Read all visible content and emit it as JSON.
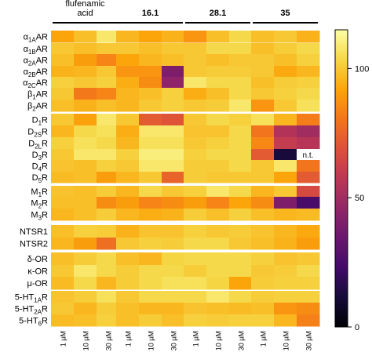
{
  "chart_data": {
    "type": "heatmap",
    "title": "",
    "xlabel": "",
    "ylabel": "",
    "groups": [
      {
        "label": "flufenamic acid",
        "label_lines": [
          "flufenamic",
          "acid"
        ],
        "bold": false
      },
      {
        "label": "16.1",
        "label_lines": [
          "16.1"
        ],
        "bold": true
      },
      {
        "label": "28.1",
        "label_lines": [
          "28.1"
        ],
        "bold": true
      },
      {
        "label": "35",
        "label_lines": [
          "35"
        ],
        "bold": true
      }
    ],
    "concentrations": [
      "1 µM",
      "10 µM",
      "30 µM"
    ],
    "rows": [
      {
        "main": "α",
        "sub": "1A",
        "rest": "AR"
      },
      {
        "main": "α",
        "sub": "1B",
        "rest": "AR"
      },
      {
        "main": "α",
        "sub": "2A",
        "rest": "AR"
      },
      {
        "main": "α",
        "sub": "2B",
        "rest": "AR"
      },
      {
        "main": "α",
        "sub": "2C",
        "rest": "AR"
      },
      {
        "main": "β",
        "sub": "1",
        "rest": "AR"
      },
      {
        "main": "β",
        "sub": "2",
        "rest": "AR"
      },
      {
        "main": "D",
        "sub": "1",
        "rest": "R"
      },
      {
        "main": "D",
        "sub": "2S",
        "rest": "R"
      },
      {
        "main": "D",
        "sub": "2L",
        "rest": "R"
      },
      {
        "main": "D",
        "sub": "3",
        "rest": "R"
      },
      {
        "main": "D",
        "sub": "4",
        "rest": "R"
      },
      {
        "main": "D",
        "sub": "5",
        "rest": "R"
      },
      {
        "main": "M",
        "sub": "1",
        "rest": "R"
      },
      {
        "main": "M",
        "sub": "2",
        "rest": "R"
      },
      {
        "main": "M",
        "sub": "3",
        "rest": "R"
      },
      {
        "main": "NTSR1",
        "sub": "",
        "rest": ""
      },
      {
        "main": "NTSR2",
        "sub": "",
        "rest": ""
      },
      {
        "main": "δ-OR",
        "sub": "",
        "rest": ""
      },
      {
        "main": "κ-OR",
        "sub": "",
        "rest": ""
      },
      {
        "main": "μ-OR",
        "sub": "",
        "rest": ""
      },
      {
        "main": "5-HT",
        "sub": "1A",
        "rest": "R"
      },
      {
        "main": "5-HT",
        "sub": "2A",
        "rest": "R"
      },
      {
        "main": "5-HT",
        "sub": "6",
        "rest": "R"
      }
    ],
    "row_groups": [
      [
        0,
        6
      ],
      [
        7,
        12
      ],
      [
        13,
        15
      ],
      [
        16,
        17
      ],
      [
        18,
        20
      ],
      [
        21,
        23
      ]
    ],
    "values": [
      [
        92,
        98,
        108,
        96,
        92,
        95,
        88,
        98,
        104,
        98,
        100,
        95
      ],
      [
        100,
        98,
        100,
        100,
        98,
        100,
        100,
        104,
        104,
        98,
        101,
        104
      ],
      [
        98,
        90,
        84,
        92,
        96,
        98,
        100,
        98,
        100,
        100,
        98,
        102
      ],
      [
        95,
        96,
        100,
        88,
        88,
        40,
        100,
        101,
        101,
        100,
        93,
        96
      ],
      [
        102,
        100,
        102,
        94,
        86,
        45,
        108,
        104,
        104,
        98,
        101,
        102
      ],
      [
        100,
        81,
        84,
        96,
        98,
        102,
        94,
        98,
        104,
        100,
        102,
        104
      ],
      [
        98,
        95,
        98,
        96,
        100,
        102,
        100,
        101,
        108,
        88,
        100,
        106
      ],
      [
        100,
        91,
        108,
        100,
        72,
        70,
        100,
        104,
        102,
        106,
        96,
        82
      ],
      [
        96,
        104,
        106,
        94,
        108,
        108,
        99,
        99,
        104,
        80,
        55,
        50
      ],
      [
        102,
        106,
        104,
        96,
        106,
        106,
        100,
        102,
        104,
        85,
        60,
        56
      ],
      [
        100,
        108,
        108,
        102,
        110,
        110,
        102,
        104,
        104,
        72,
        12,
        null
      ],
      [
        99,
        98,
        102,
        100,
        108,
        108,
        101,
        101,
        104,
        100,
        108,
        80
      ],
      [
        97,
        98,
        90,
        96,
        100,
        75,
        101,
        100,
        100,
        100,
        92,
        72
      ],
      [
        99,
        98,
        101,
        96,
        104,
        100,
        102,
        108,
        104,
        96,
        100,
        66
      ],
      [
        98,
        98,
        86,
        90,
        84,
        86,
        90,
        84,
        92,
        86,
        40,
        25
      ],
      [
        96,
        98,
        101,
        96,
        94,
        95,
        101,
        98,
        102,
        98,
        96,
        97
      ],
      [
        98,
        102,
        101,
        95,
        99,
        99,
        102,
        100,
        101,
        99,
        96,
        93
      ],
      [
        96,
        90,
        78,
        100,
        102,
        101,
        104,
        104,
        100,
        98,
        95,
        90
      ],
      [
        98,
        101,
        104,
        98,
        96,
        103,
        104,
        104,
        104,
        102,
        99,
        100
      ],
      [
        100,
        108,
        104,
        101,
        104,
        104,
        101,
        104,
        104,
        100,
        101,
        104
      ],
      [
        97,
        104,
        96,
        101,
        104,
        106,
        106,
        103,
        92,
        101,
        102,
        102
      ],
      [
        99,
        101,
        106,
        100,
        104,
        104,
        104,
        108,
        104,
        101,
        102,
        102
      ],
      [
        100,
        96,
        101,
        98,
        96,
        96,
        99,
        98,
        97,
        98,
        88,
        86
      ],
      [
        97,
        98,
        102,
        98,
        101,
        98,
        102,
        101,
        102,
        102,
        96,
        83
      ]
    ],
    "missing_label": "n.t.",
    "colorbar": {
      "min": 0,
      "max": 115,
      "ticks": [
        0,
        50,
        100
      ],
      "colormap": "inferno"
    },
    "grid": false
  }
}
